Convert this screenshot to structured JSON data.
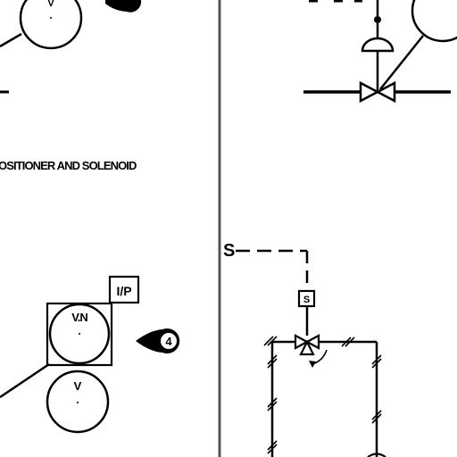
{
  "drawing": {
    "section_title": "OSITIONER AND SOLENOID",
    "left_panel": {
      "top_instrument_tag": "V",
      "positioner_box_label": "I/P",
      "positioner_tag": "V.N",
      "lower_instrument_tag": "V",
      "note_callout_number": "4"
    },
    "right_panel": {
      "solenoid_label": "S",
      "signal_break_symbol": "S"
    }
  },
  "colors": {
    "ink": "#000000",
    "divider": "#555555",
    "background": "#ffffff"
  }
}
